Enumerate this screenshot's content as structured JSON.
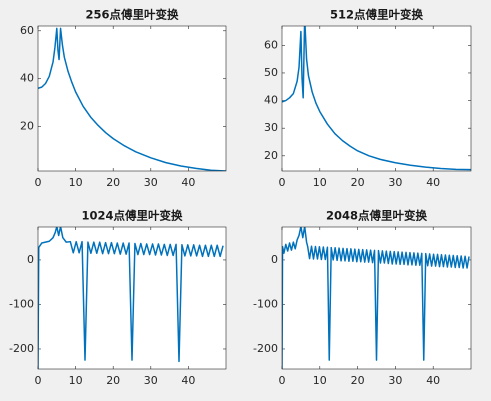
{
  "chart_data": [
    {
      "type": "line",
      "title": "256点傅里叶变换",
      "xlim": [
        0,
        50
      ],
      "xticks": [
        0,
        10,
        20,
        30,
        40
      ],
      "ylim": [
        1.5,
        62
      ],
      "yticks": [
        20,
        40,
        60
      ],
      "series": [
        {
          "color": "#0072bd",
          "x": [
            0,
            1,
            2,
            3,
            4,
            4.5,
            5,
            5.3,
            5.6,
            6,
            6.5,
            7,
            8,
            9,
            10,
            12,
            14,
            16,
            18,
            20,
            23,
            26,
            30,
            34,
            38,
            42,
            46,
            50
          ],
          "values": [
            36,
            36.5,
            38,
            41,
            47,
            53,
            61,
            52,
            48,
            61,
            54,
            49,
            43,
            38.5,
            34.5,
            28.5,
            24,
            20.5,
            17.5,
            15,
            12,
            9.5,
            7,
            5,
            3.6,
            2.6,
            1.8,
            1.5
          ]
        }
      ]
    },
    {
      "type": "line",
      "title": "512点傅里叶变换",
      "xlim": [
        0,
        50
      ],
      "xticks": [
        0,
        10,
        20,
        30,
        40
      ],
      "ylim": [
        14.5,
        67
      ],
      "yticks": [
        20,
        30,
        40,
        50,
        60
      ],
      "series": [
        {
          "color": "#0072bd",
          "x": [
            0,
            1,
            2,
            3,
            4,
            4.5,
            5,
            5.3,
            5.6,
            6,
            6.5,
            7,
            8,
            9,
            10,
            12,
            14,
            16,
            18,
            20,
            23,
            26,
            30,
            34,
            38,
            42,
            46,
            50
          ],
          "values": [
            39.5,
            40,
            41,
            42.5,
            47,
            52,
            65,
            48,
            41,
            70,
            55,
            49,
            43,
            39,
            36,
            31.5,
            28,
            25.5,
            23.5,
            21.8,
            20,
            18.7,
            17.5,
            16.6,
            15.9,
            15.4,
            15.1,
            15
          ]
        }
      ]
    },
    {
      "type": "line",
      "title": "1024点傅里叶变换",
      "xlim": [
        0,
        50
      ],
      "xticks": [
        0,
        10,
        20,
        30,
        40
      ],
      "ylim": [
        -245,
        74
      ],
      "yticks": [
        -200,
        -100,
        0
      ],
      "series": [
        {
          "color": "#0072bd",
          "x": [
            0,
            0.2,
            1,
            2,
            3,
            4,
            4.6,
            5,
            5.5,
            6,
            6.6,
            7.5,
            8.6,
            9.38,
            10.16,
            10.94,
            11.72,
            12.5,
            13.28,
            14.06,
            14.84,
            15.63,
            16.41,
            17.19,
            17.97,
            18.75,
            19.53,
            20.31,
            21.09,
            21.88,
            22.66,
            23.44,
            24.22,
            25,
            25.78,
            26.56,
            27.34,
            28.13,
            28.91,
            29.69,
            30.47,
            31.25,
            32.03,
            32.81,
            33.59,
            34.38,
            35.16,
            35.94,
            36.72,
            37.5,
            38.28,
            39.06,
            39.84,
            40.63,
            41.41,
            42.19,
            42.97,
            43.75,
            44.53,
            45.31,
            46.09,
            46.88,
            47.66,
            48.44,
            49.22
          ],
          "values": [
            -245,
            28,
            38,
            40,
            42,
            50,
            62,
            75,
            55,
            75,
            50,
            40,
            41,
            16,
            41,
            16,
            41,
            -225,
            40,
            15,
            40,
            15,
            40,
            14,
            39,
            14,
            39,
            14,
            38,
            13,
            38,
            13,
            38,
            -225,
            37,
            12,
            37,
            12,
            36,
            12,
            36,
            11,
            36,
            11,
            35,
            10,
            35,
            10,
            35,
            -228,
            34,
            9,
            34,
            9,
            34,
            9,
            33,
            8,
            33,
            8,
            33,
            8,
            33,
            8,
            32
          ]
        }
      ]
    },
    {
      "type": "line",
      "title": "2048点傅里叶变换",
      "xlim": [
        0,
        50
      ],
      "xticks": [
        0,
        10,
        20,
        30,
        40
      ],
      "ylim": [
        -245,
        74
      ],
      "yticks": [
        -200,
        -100,
        0
      ],
      "series": [
        {
          "color": "#0072bd",
          "x": [
            0,
            0.15,
            0.5,
            1,
            1.5,
            2,
            2.5,
            3,
            3.5,
            4,
            4.5,
            5,
            5.5,
            6,
            6.5,
            6.8,
            7.29,
            7.81,
            8.33,
            8.85,
            9.38,
            9.9,
            10.42,
            10.94,
            11.46,
            12.02,
            12.5,
            13.02,
            13.54,
            14.06,
            14.58,
            15.1,
            15.63,
            16.15,
            16.67,
            17.19,
            17.71,
            18.23,
            18.75,
            19.27,
            19.79,
            20.31,
            20.83,
            21.35,
            21.88,
            22.4,
            22.92,
            23.44,
            23.96,
            24.48,
            25,
            25.52,
            26.04,
            26.56,
            27.08,
            27.6,
            28.13,
            28.65,
            29.17,
            29.69,
            30.21,
            30.73,
            31.25,
            31.77,
            32.29,
            32.81,
            33.33,
            33.85,
            34.38,
            34.9,
            35.42,
            35.94,
            36.46,
            36.98,
            37.5,
            38.02,
            38.54,
            39.06,
            39.58,
            40.1,
            40.63,
            41.15,
            41.67,
            42.19,
            42.71,
            43.23,
            43.75,
            44.27,
            44.79,
            45.31,
            45.83,
            46.35,
            46.88,
            47.4,
            47.92,
            48.44,
            48.96,
            49.48
          ],
          "values": [
            -245,
            30,
            15,
            35,
            20,
            38,
            22,
            40,
            25,
            45,
            55,
            75,
            50,
            75,
            40,
            30,
            3,
            30.7,
            2,
            30.1,
            2,
            29.6,
            1,
            29,
            1,
            28.4,
            -225,
            27.8,
            0,
            27.3,
            -1,
            26.7,
            -2,
            26.1,
            -2,
            25.5,
            -3,
            25,
            -3,
            24.4,
            -4,
            23.8,
            -4,
            23.3,
            -5,
            22.7,
            -5,
            22.1,
            -6,
            21.5,
            -225,
            21,
            -7,
            20.4,
            -7,
            19.8,
            -8,
            19.2,
            -9,
            18.7,
            -9,
            18.1,
            -10,
            17.5,
            -10,
            17,
            -11,
            16.4,
            -11,
            15.8,
            -12,
            15.2,
            -12,
            14.7,
            -225,
            14.1,
            -13,
            13.5,
            -14,
            12.9,
            -14,
            12.4,
            -15,
            11.8,
            -15,
            11.2,
            -16,
            10.6,
            -16,
            10.1,
            -17,
            9.5,
            -17,
            8.9,
            -18,
            8.4,
            -18,
            7.8
          ]
        }
      ]
    }
  ]
}
